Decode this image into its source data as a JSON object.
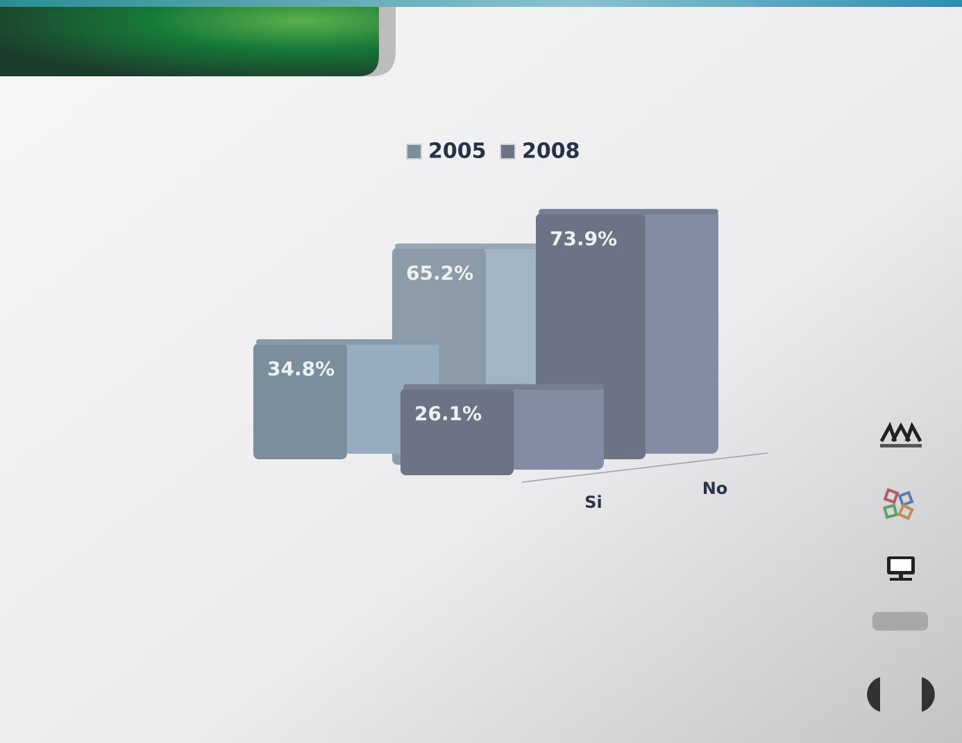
{
  "chart_data": {
    "type": "bar3d",
    "categories": [
      "Si",
      "No"
    ],
    "series": [
      {
        "name": "2005",
        "color": "#7c8d9c",
        "values": [
          34.8,
          65.2
        ],
        "value_labels": [
          "34.8%",
          "65.2%"
        ]
      },
      {
        "name": "2008",
        "color": "#6b7385",
        "values": [
          26.1,
          73.9
        ],
        "value_labels": [
          "26.1%",
          "73.9%"
        ]
      }
    ],
    "legend": "top"
  }
}
